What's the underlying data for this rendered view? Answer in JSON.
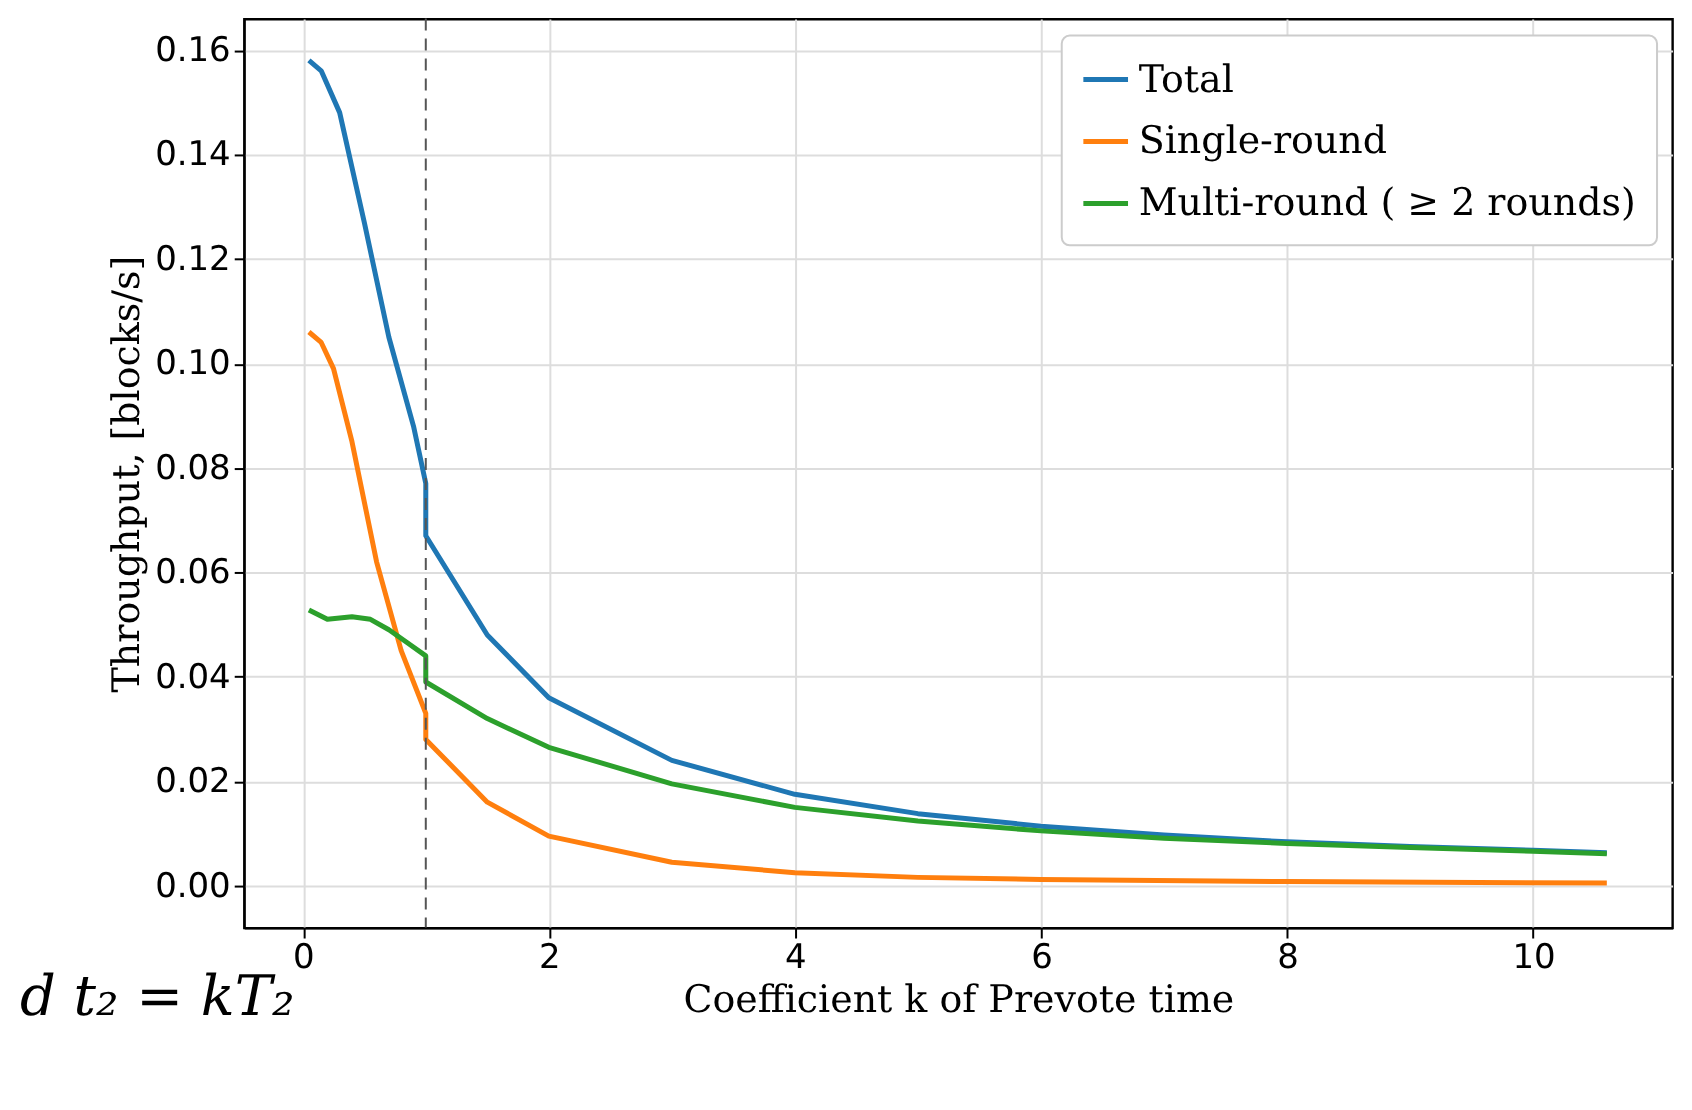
{
  "chart_data": {
    "type": "line",
    "xlabel": "Coefficient k of Prevote time",
    "ylabel": "Throughput, [blocks/s]",
    "xlim": [
      -0.48,
      11.13
    ],
    "xticks": [
      0,
      2,
      4,
      6,
      8,
      10
    ],
    "ylim": [
      -0.008,
      0.166
    ],
    "yticks": [
      {
        "value": 0,
        "label": "0.00"
      },
      0.02,
      0.04,
      0.06,
      0.08,
      {
        "value": 0.1,
        "label": "0.10"
      },
      0.12,
      0.14,
      0.16
    ],
    "grid": true,
    "legend": "top right",
    "line_style": "solid",
    "marker": "none",
    "ref_lines": [
      {
        "axis": "x",
        "value": 1.0,
        "color": "#555555",
        "line_style": "dashed"
      }
    ],
    "annotations": [
      "d t₂ = kT₂"
    ],
    "series": [
      {
        "name": "Total",
        "color": "#1f77b4",
        "x": [
          0.05,
          0.15,
          0.3,
          0.5,
          0.7,
          0.9,
          1.0,
          1.0,
          1.5,
          2,
          3,
          4,
          5,
          6,
          7,
          8,
          9,
          10,
          10.6
        ],
        "values": [
          0.158,
          0.156,
          0.148,
          0.127,
          0.105,
          0.088,
          0.077,
          0.067,
          0.048,
          0.036,
          0.024,
          0.0175,
          0.0138,
          0.0114,
          0.0097,
          0.0084,
          0.0075,
          0.0068,
          0.0063
        ]
      },
      {
        "name": "Single-round",
        "color": "#ff7f0e",
        "x": [
          0.05,
          0.15,
          0.25,
          0.4,
          0.6,
          0.8,
          1.0,
          1.0,
          1.5,
          2,
          3,
          4,
          5,
          6,
          8,
          10.6
        ],
        "values": [
          0.106,
          0.104,
          0.099,
          0.085,
          0.062,
          0.045,
          0.033,
          0.028,
          0.016,
          0.0095,
          0.0045,
          0.0025,
          0.0016,
          0.0012,
          0.0008,
          0.0005
        ]
      },
      {
        "name": "Multi-round ( ≥ 2 rounds)",
        "color": "#2ca02c",
        "x": [
          0.05,
          0.2,
          0.4,
          0.55,
          0.7,
          0.85,
          1.0,
          1.0,
          1.5,
          2,
          3,
          4,
          5,
          6,
          7,
          8,
          9,
          10,
          10.6
        ],
        "values": [
          0.0528,
          0.051,
          0.0515,
          0.051,
          0.049,
          0.0465,
          0.044,
          0.039,
          0.032,
          0.0265,
          0.0195,
          0.015,
          0.0124,
          0.0105,
          0.0091,
          0.0081,
          0.0073,
          0.0066,
          0.0061
        ]
      }
    ]
  }
}
